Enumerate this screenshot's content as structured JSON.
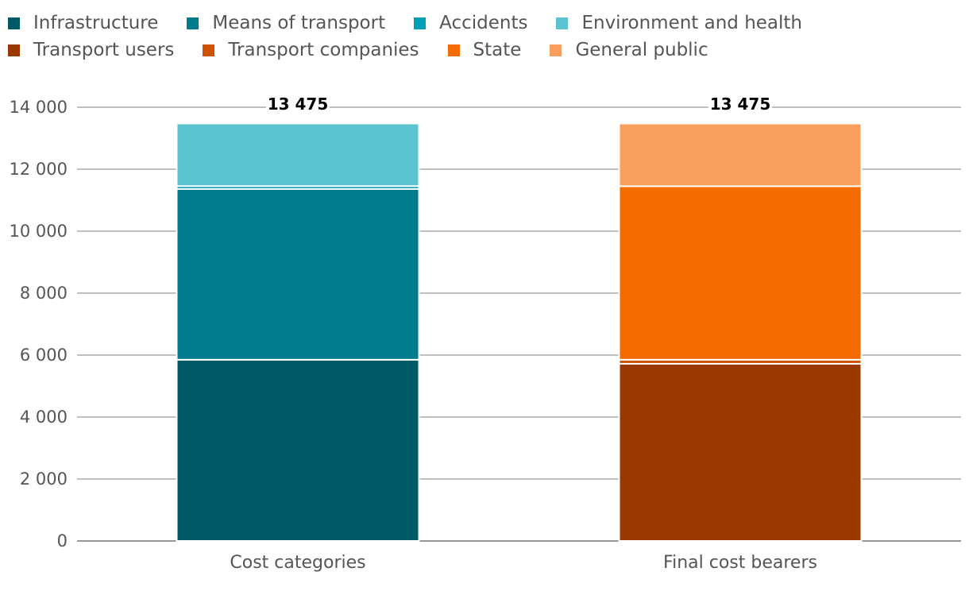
{
  "chart_data": {
    "type": "bar",
    "stacked": true,
    "categories": [
      "Cost categories",
      "Final cost bearers"
    ],
    "series": [
      {
        "name": "Infrastructure",
        "color": "#005a66",
        "values": [
          5850,
          0
        ]
      },
      {
        "name": "Means of transport",
        "color": "#007b8b",
        "values": [
          5510,
          0
        ]
      },
      {
        "name": "Accidents",
        "color": "#00a0b8",
        "values": [
          95,
          0
        ]
      },
      {
        "name": "Environment and health",
        "color": "#5bc3d0",
        "values": [
          2020,
          0
        ]
      },
      {
        "name": "Transport users",
        "color": "#993800",
        "values": [
          0,
          5720
        ]
      },
      {
        "name": "Transport companies",
        "color": "#cf5200",
        "values": [
          0,
          130
        ]
      },
      {
        "name": "State",
        "color": "#f46b00",
        "values": [
          0,
          5600
        ]
      },
      {
        "name": "General public",
        "color": "#f9a05e",
        "values": [
          0,
          2025
        ]
      }
    ],
    "totals": [
      "13 475",
      "13 475"
    ],
    "yticks": [
      "0",
      "2 000",
      "4 000",
      "6 000",
      "8 000",
      "10 000",
      "12 000",
      "14 000"
    ],
    "ylim": [
      0,
      14000
    ],
    "ytick_step": 2000,
    "grid": true,
    "legend": "top-left",
    "title": "",
    "xlabel": "",
    "ylabel": ""
  }
}
